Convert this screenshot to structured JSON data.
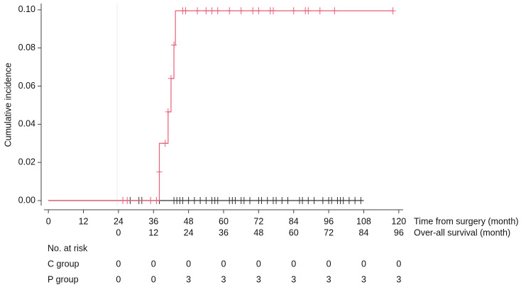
{
  "chart_data": {
    "type": "step",
    "ylabel": "Cumulative incidence",
    "xlabel": "Time from surgery (month)",
    "x2label": "Over-all survival (month)",
    "xlim": [
      -1.5,
      121.5
    ],
    "ylim": [
      -0.0026,
      0.1033
    ],
    "xticks": [
      0,
      12,
      24,
      36,
      48,
      60,
      72,
      84,
      96,
      108,
      120
    ],
    "x2ticks": [
      {
        "value": 24,
        "label": "0"
      },
      {
        "value": 36,
        "label": "12"
      },
      {
        "value": 48,
        "label": "24"
      },
      {
        "value": 60,
        "label": "36"
      },
      {
        "value": 72,
        "label": "48"
      },
      {
        "value": 84,
        "label": "60"
      },
      {
        "value": 96,
        "label": "72"
      },
      {
        "value": 108,
        "label": "84"
      },
      {
        "value": 120,
        "label": "96"
      }
    ],
    "yticks": [
      {
        "value": 0,
        "label": "0.00"
      },
      {
        "value": 0.02,
        "label": "0.02"
      },
      {
        "value": 0.04,
        "label": "0.04"
      },
      {
        "value": 0.06,
        "label": "0.06"
      },
      {
        "value": 0.08,
        "label": "0.08"
      },
      {
        "value": 0.1,
        "label": "0.10"
      }
    ],
    "series": [
      {
        "name": "C group",
        "color": "#333333",
        "x": [
          0,
          108
        ],
        "values": [
          0,
          0
        ],
        "censor_x": [
          28,
          31,
          32,
          38,
          43,
          44,
          45,
          46,
          48,
          50,
          52,
          54,
          56,
          57,
          58,
          62,
          63,
          64,
          66,
          67,
          69,
          72,
          73,
          75,
          77,
          78,
          80,
          82,
          86,
          87,
          89,
          91,
          94,
          96,
          97,
          99,
          100,
          101,
          103,
          105,
          107
        ],
        "censor_values": [
          0,
          0,
          0,
          0,
          0,
          0,
          0,
          0,
          0,
          0,
          0,
          0,
          0,
          0,
          0,
          0,
          0,
          0,
          0,
          0,
          0,
          0,
          0,
          0,
          0,
          0,
          0,
          0,
          0,
          0,
          0,
          0,
          0,
          0,
          0,
          0,
          0,
          0,
          0,
          0,
          0
        ]
      },
      {
        "name": "P group",
        "color": "#e8607a",
        "x": [
          0,
          38,
          41,
          42,
          43,
          43.5,
          118
        ],
        "values": [
          0,
          0.03,
          0.0465,
          0.064,
          0.0815,
          0.0995,
          0.0995
        ],
        "censor_x": [
          25.5,
          27,
          35,
          37,
          38,
          40,
          41,
          42,
          43,
          46,
          47,
          51,
          54,
          56,
          58,
          62,
          66,
          70,
          72,
          76,
          77,
          84,
          88,
          89,
          93,
          98,
          118
        ],
        "censor_values": [
          0,
          0,
          0,
          0,
          0.015,
          0.03,
          0.0465,
          0.064,
          0.0815,
          0.0995,
          0.0995,
          0.0995,
          0.0995,
          0.0995,
          0.0995,
          0.0995,
          0.0995,
          0.0995,
          0.0995,
          0.0995,
          0.0995,
          0.0995,
          0.0995,
          0.0995,
          0.0995,
          0.0995,
          0.0995
        ]
      }
    ],
    "risk_table": {
      "title": "No. at risk",
      "rows": [
        {
          "name": "C group",
          "values": [
            0,
            0,
            0,
            0,
            0,
            0,
            0,
            0,
            0
          ]
        },
        {
          "name": "P group",
          "values": [
            0,
            0,
            3,
            3,
            3,
            3,
            3,
            3,
            3
          ]
        }
      ]
    }
  }
}
